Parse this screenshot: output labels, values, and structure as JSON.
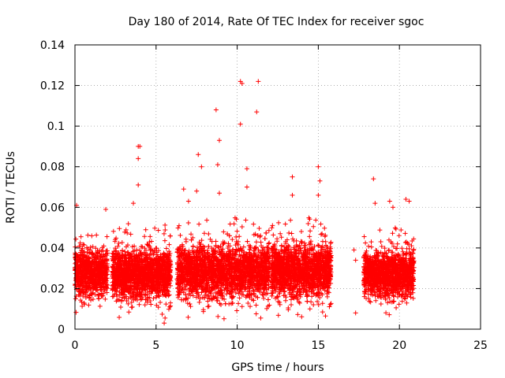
{
  "chart_data": {
    "type": "scatter",
    "title": "Day 180 of 2014, Rate Of TEC Index for receiver sgoc",
    "xlabel": "GPS time / hours",
    "ylabel": "ROTI / TECUs",
    "xlim": [
      0,
      25
    ],
    "ylim": [
      0,
      0.14
    ],
    "x_ticks": [
      0,
      5,
      10,
      15,
      20,
      25
    ],
    "x_tick_labels": [
      "0",
      "5",
      "10",
      "15",
      "20",
      "25"
    ],
    "y_ticks": [
      0,
      0.02,
      0.04,
      0.06,
      0.08,
      0.1,
      0.12,
      0.14
    ],
    "y_tick_labels": [
      "0",
      "0.02",
      "0.04",
      "0.06",
      "0.08",
      "0.1",
      "0.12",
      "0.14"
    ],
    "grid": true,
    "marker": "+",
    "series": [
      {
        "name": "ROTI",
        "color": "#ff0000",
        "dense_segments": [
          {
            "x_start": 0.0,
            "x_end": 2.0,
            "y_min": 0.008,
            "y_max": 0.05
          },
          {
            "x_start": 2.3,
            "x_end": 5.9,
            "y_min": 0.005,
            "y_max": 0.052
          },
          {
            "x_start": 6.3,
            "x_end": 12.0,
            "y_min": 0.005,
            "y_max": 0.055
          },
          {
            "x_start": 12.1,
            "x_end": 15.8,
            "y_min": 0.006,
            "y_max": 0.055
          },
          {
            "x_start": 17.8,
            "x_end": 20.9,
            "y_min": 0.007,
            "y_max": 0.05
          }
        ],
        "outliers": [
          {
            "x": 0.1,
            "y": 0.061
          },
          {
            "x": 1.9,
            "y": 0.059
          },
          {
            "x": 3.6,
            "y": 0.062
          },
          {
            "x": 3.9,
            "y": 0.09
          },
          {
            "x": 4.0,
            "y": 0.09
          },
          {
            "x": 3.9,
            "y": 0.084
          },
          {
            "x": 3.9,
            "y": 0.071
          },
          {
            "x": 5.5,
            "y": 0.003
          },
          {
            "x": 6.7,
            "y": 0.069
          },
          {
            "x": 7.0,
            "y": 0.063
          },
          {
            "x": 7.5,
            "y": 0.068
          },
          {
            "x": 7.6,
            "y": 0.086
          },
          {
            "x": 7.8,
            "y": 0.08
          },
          {
            "x": 8.7,
            "y": 0.108
          },
          {
            "x": 8.8,
            "y": 0.081
          },
          {
            "x": 8.9,
            "y": 0.093
          },
          {
            "x": 8.9,
            "y": 0.067
          },
          {
            "x": 10.2,
            "y": 0.122
          },
          {
            "x": 10.3,
            "y": 0.121
          },
          {
            "x": 10.2,
            "y": 0.101
          },
          {
            "x": 10.6,
            "y": 0.079
          },
          {
            "x": 10.6,
            "y": 0.07
          },
          {
            "x": 11.3,
            "y": 0.122
          },
          {
            "x": 11.2,
            "y": 0.107
          },
          {
            "x": 13.4,
            "y": 0.075
          },
          {
            "x": 13.4,
            "y": 0.066
          },
          {
            "x": 15.0,
            "y": 0.08
          },
          {
            "x": 15.1,
            "y": 0.073
          },
          {
            "x": 15.0,
            "y": 0.066
          },
          {
            "x": 17.2,
            "y": 0.039
          },
          {
            "x": 17.3,
            "y": 0.034
          },
          {
            "x": 17.3,
            "y": 0.008
          },
          {
            "x": 18.4,
            "y": 0.074
          },
          {
            "x": 18.5,
            "y": 0.062
          },
          {
            "x": 19.4,
            "y": 0.063
          },
          {
            "x": 19.6,
            "y": 0.06
          },
          {
            "x": 20.4,
            "y": 0.064
          },
          {
            "x": 20.6,
            "y": 0.063
          }
        ]
      }
    ]
  }
}
